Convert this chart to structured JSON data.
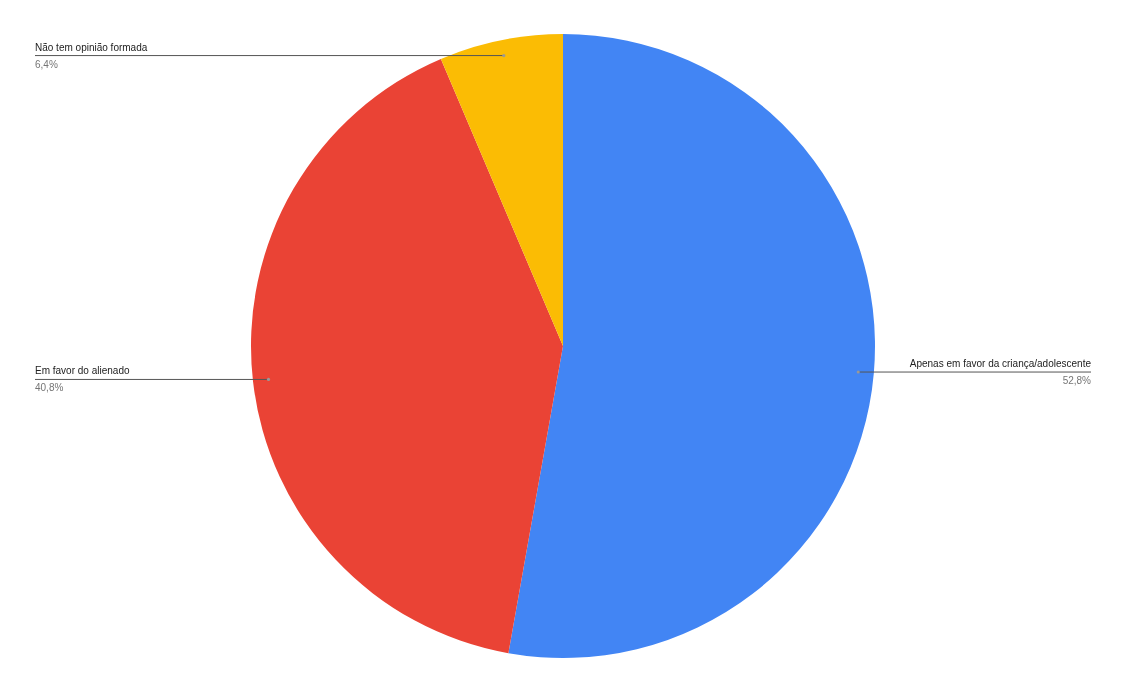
{
  "chart_data": {
    "type": "pie",
    "categories": [
      "Apenas em favor da criança/adolescente",
      "Em favor do alienado",
      "Não tem opinião formada"
    ],
    "values": [
      52.8,
      40.8,
      6.4
    ],
    "value_labels": [
      "52,8%",
      "40,8%",
      "6,4%"
    ],
    "colors": [
      "#4285f4",
      "#ea4335",
      "#fbbc04"
    ]
  }
}
